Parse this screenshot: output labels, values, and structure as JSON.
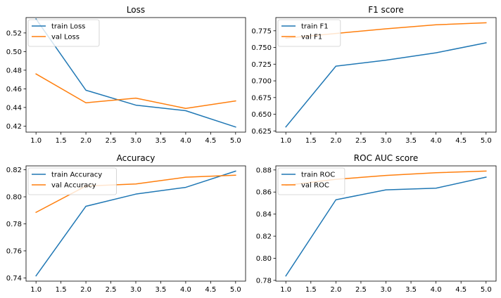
{
  "colors": {
    "train": "#1f77b4",
    "val": "#ff7f0e",
    "axis": "#000000",
    "background": "#ffffff"
  },
  "chart_data": [
    {
      "type": "line",
      "title": "Loss",
      "xlabel": "",
      "ylabel": "",
      "x": [
        1,
        2,
        3,
        4,
        5
      ],
      "series": [
        {
          "name": "train Loss",
          "color": "#1f77b4",
          "values": [
            0.535,
            0.4585,
            0.4425,
            0.4365,
            0.419
          ]
        },
        {
          "name": "val Loss",
          "color": "#ff7f0e",
          "values": [
            0.476,
            0.445,
            0.45,
            0.439,
            0.447
          ]
        }
      ],
      "xlim": [
        0.8,
        5.2
      ],
      "ylim": [
        0.4135,
        0.5365
      ],
      "xticks": [
        1.0,
        1.5,
        2.0,
        2.5,
        3.0,
        3.5,
        4.0,
        4.5,
        5.0
      ],
      "xtick_labels": [
        "1.0",
        "1.5",
        "2.0",
        "2.5",
        "3.0",
        "3.5",
        "4.0",
        "4.5",
        "5.0"
      ],
      "yticks": [
        0.42,
        0.44,
        0.46,
        0.48,
        0.5,
        0.52
      ],
      "ytick_labels": [
        "0.42",
        "0.44",
        "0.46",
        "0.48",
        "0.50",
        "0.52"
      ],
      "grid": false,
      "legend": "upper-left"
    },
    {
      "type": "line",
      "title": "F1 score",
      "xlabel": "",
      "ylabel": "",
      "x": [
        1,
        2,
        3,
        4,
        5
      ],
      "series": [
        {
          "name": "train F1",
          "color": "#1f77b4",
          "values": [
            0.631,
            0.722,
            0.731,
            0.742,
            0.757
          ]
        },
        {
          "name": "val F1",
          "color": "#ff7f0e",
          "values": [
            0.764,
            0.771,
            0.778,
            0.784,
            0.787
          ]
        }
      ],
      "xlim": [
        0.8,
        5.2
      ],
      "ylim": [
        0.6232,
        0.7948
      ],
      "xticks": [
        1.0,
        1.5,
        2.0,
        2.5,
        3.0,
        3.5,
        4.0,
        4.5,
        5.0
      ],
      "xtick_labels": [
        "1.0",
        "1.5",
        "2.0",
        "2.5",
        "3.0",
        "3.5",
        "4.0",
        "4.5",
        "5.0"
      ],
      "yticks": [
        0.625,
        0.65,
        0.675,
        0.7,
        0.725,
        0.75,
        0.775
      ],
      "ytick_labels": [
        "0.625",
        "0.650",
        "0.675",
        "0.700",
        "0.725",
        "0.750",
        "0.775"
      ],
      "grid": false,
      "legend": "upper-left"
    },
    {
      "type": "line",
      "title": "Accuracy",
      "xlabel": "",
      "ylabel": "",
      "x": [
        1,
        2,
        3,
        4,
        5
      ],
      "series": [
        {
          "name": "train Accuracy",
          "color": "#1f77b4",
          "values": [
            0.7415,
            0.793,
            0.802,
            0.807,
            0.819
          ]
        },
        {
          "name": "val Accuracy",
          "color": "#ff7f0e",
          "values": [
            0.7885,
            0.808,
            0.8095,
            0.8145,
            0.816
          ]
        }
      ],
      "xlim": [
        0.8,
        5.2
      ],
      "ylim": [
        0.7376,
        0.8229
      ],
      "xticks": [
        1.0,
        1.5,
        2.0,
        2.5,
        3.0,
        3.5,
        4.0,
        4.5,
        5.0
      ],
      "xtick_labels": [
        "1.0",
        "1.5",
        "2.0",
        "2.5",
        "3.0",
        "3.5",
        "4.0",
        "4.5",
        "5.0"
      ],
      "yticks": [
        0.74,
        0.76,
        0.78,
        0.8,
        0.82
      ],
      "ytick_labels": [
        "0.74",
        "0.76",
        "0.78",
        "0.80",
        "0.82"
      ],
      "grid": false,
      "legend": "upper-left"
    },
    {
      "type": "line",
      "title": "ROC AUC score",
      "xlabel": "",
      "ylabel": "",
      "x": [
        1,
        2,
        3,
        4,
        5
      ],
      "series": [
        {
          "name": "train ROC",
          "color": "#1f77b4",
          "values": [
            0.784,
            0.853,
            0.862,
            0.8635,
            0.8735
          ]
        },
        {
          "name": "val ROC",
          "color": "#ff7f0e",
          "values": [
            0.866,
            0.8715,
            0.875,
            0.8775,
            0.879
          ]
        }
      ],
      "xlim": [
        0.8,
        5.2
      ],
      "ylim": [
        0.7793,
        0.8837
      ],
      "xticks": [
        1.0,
        1.5,
        2.0,
        2.5,
        3.0,
        3.5,
        4.0,
        4.5,
        5.0
      ],
      "xtick_labels": [
        "1.0",
        "1.5",
        "2.0",
        "2.5",
        "3.0",
        "3.5",
        "4.0",
        "4.5",
        "5.0"
      ],
      "yticks": [
        0.78,
        0.8,
        0.82,
        0.84,
        0.86,
        0.88
      ],
      "ytick_labels": [
        "0.78",
        "0.80",
        "0.82",
        "0.84",
        "0.86",
        "0.88"
      ],
      "grid": false,
      "legend": "upper-left"
    }
  ]
}
